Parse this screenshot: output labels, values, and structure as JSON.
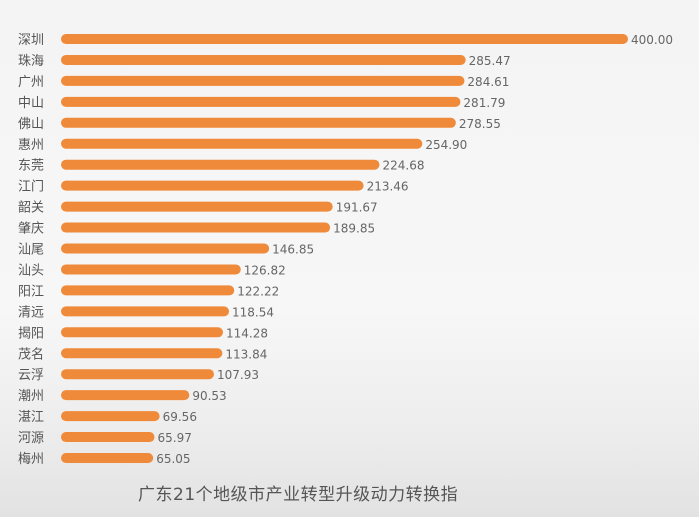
{
  "chart_data": {
    "type": "bar",
    "orientation": "horizontal",
    "title": "广东21个地级市产业转型升级动力转换指",
    "categories": [
      "深圳",
      "珠海",
      "广州",
      "中山",
      "佛山",
      "惠州",
      "东莞",
      "江门",
      "韶关",
      "肇庆",
      "汕尾",
      "汕头",
      "阳江",
      "清远",
      "揭阳",
      "茂名",
      "云浮",
      "潮州",
      "湛江",
      "河源",
      "梅州"
    ],
    "values": [
      400.0,
      285.47,
      284.61,
      281.79,
      278.55,
      254.9,
      224.68,
      213.46,
      191.67,
      189.85,
      146.85,
      126.82,
      122.22,
      118.54,
      114.28,
      113.84,
      107.93,
      90.53,
      69.56,
      65.97,
      65.05
    ],
    "value_labels": [
      "400.00",
      "285.47",
      "284.61",
      "281.79",
      "278.55",
      "254.90",
      "224.68",
      "213.46",
      "191.67",
      "189.85",
      "146.85",
      "126.82",
      "122.22",
      "118.54",
      "114.28",
      "113.84",
      "107.93",
      "90.53",
      "69.56",
      "65.97",
      "65.05"
    ],
    "xlim": [
      0,
      400
    ],
    "grid": false,
    "bar_color": "#ef8a3a"
  }
}
